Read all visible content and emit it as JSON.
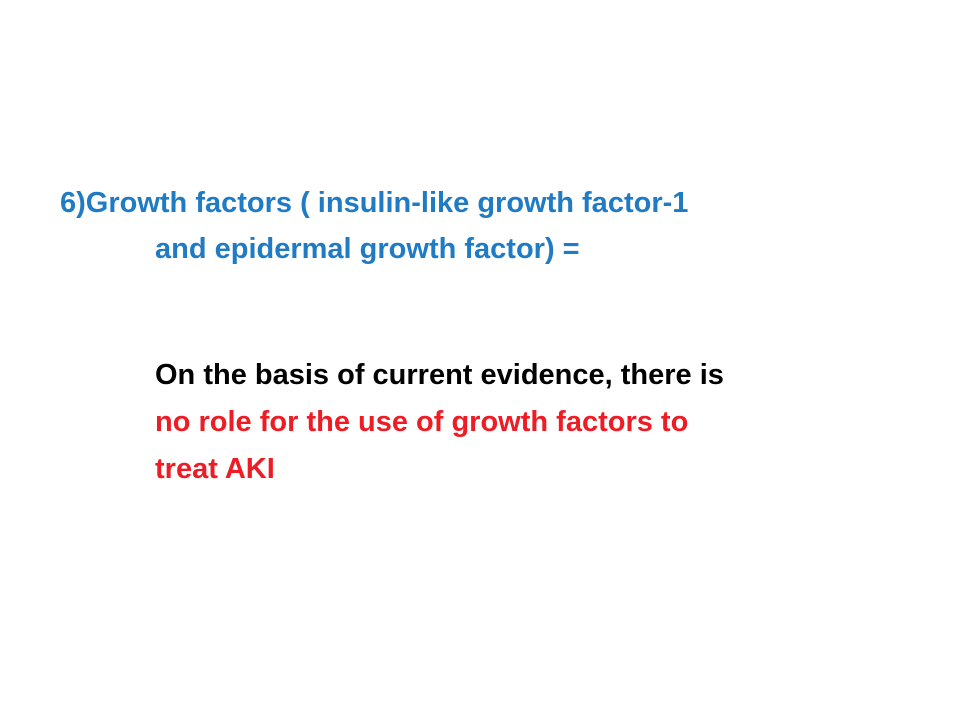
{
  "slide": {
    "heading": {
      "line1": "6)Growth factors ( insulin-like growth factor-1",
      "line2": "and epidermal growth factor) ="
    },
    "body": {
      "line1_black": "On the basis of current evidence, there is",
      "line2_red": "no role for the use of growth factors to",
      "line3_red": "treat AKI"
    }
  },
  "colors": {
    "heading": "#1f7bc4",
    "body_black": "#000000",
    "body_red": "#ee1c24",
    "background": "#ffffff"
  }
}
